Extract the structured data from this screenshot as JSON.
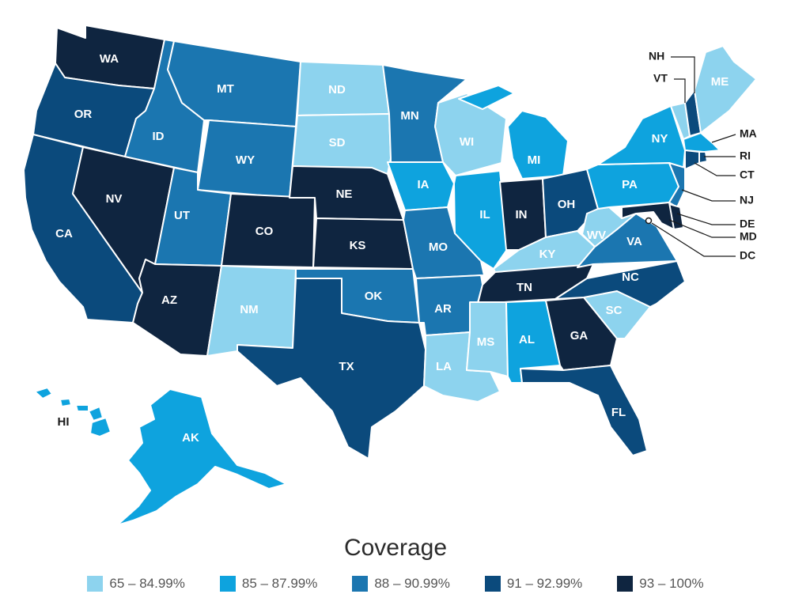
{
  "legend": {
    "title": "Coverage",
    "bins": [
      {
        "label": "65 – 84.99%",
        "color": "#8dd3ee"
      },
      {
        "label": "85 – 87.99%",
        "color": "#0ea3de"
      },
      {
        "label": "88 – 90.99%",
        "color": "#1b76b0"
      },
      {
        "label": "91 – 92.99%",
        "color": "#0b4a7c"
      },
      {
        "label": "93 – 100%",
        "color": "#0f2540"
      }
    ]
  },
  "states": {
    "WA": {
      "abbr": "WA",
      "bin": 4
    },
    "OR": {
      "abbr": "OR",
      "bin": 3
    },
    "CA": {
      "abbr": "CA",
      "bin": 3
    },
    "NV": {
      "abbr": "NV",
      "bin": 4
    },
    "ID": {
      "abbr": "ID",
      "bin": 2
    },
    "MT": {
      "abbr": "MT",
      "bin": 2
    },
    "WY": {
      "abbr": "WY",
      "bin": 2
    },
    "UT": {
      "abbr": "UT",
      "bin": 2
    },
    "AZ": {
      "abbr": "AZ",
      "bin": 4
    },
    "CO": {
      "abbr": "CO",
      "bin": 4
    },
    "NM": {
      "abbr": "NM",
      "bin": 0
    },
    "ND": {
      "abbr": "ND",
      "bin": 0
    },
    "SD": {
      "abbr": "SD",
      "bin": 0
    },
    "NE": {
      "abbr": "NE",
      "bin": 4
    },
    "KS": {
      "abbr": "KS",
      "bin": 4
    },
    "OK": {
      "abbr": "OK",
      "bin": 2
    },
    "TX": {
      "abbr": "TX",
      "bin": 3
    },
    "MN": {
      "abbr": "MN",
      "bin": 2
    },
    "IA": {
      "abbr": "IA",
      "bin": 1
    },
    "MO": {
      "abbr": "MO",
      "bin": 2
    },
    "AR": {
      "abbr": "AR",
      "bin": 2
    },
    "LA": {
      "abbr": "LA",
      "bin": 0
    },
    "WI": {
      "abbr": "WI",
      "bin": 0
    },
    "IL": {
      "abbr": "IL",
      "bin": 1
    },
    "MI": {
      "abbr": "MI",
      "bin": 1
    },
    "IN": {
      "abbr": "IN",
      "bin": 4
    },
    "OH": {
      "abbr": "OH",
      "bin": 3
    },
    "KY": {
      "abbr": "KY",
      "bin": 0
    },
    "TN": {
      "abbr": "TN",
      "bin": 4
    },
    "MS": {
      "abbr": "MS",
      "bin": 0
    },
    "AL": {
      "abbr": "AL",
      "bin": 1
    },
    "GA": {
      "abbr": "GA",
      "bin": 4
    },
    "FL": {
      "abbr": "FL",
      "bin": 3
    },
    "SC": {
      "abbr": "SC",
      "bin": 0
    },
    "NC": {
      "abbr": "NC",
      "bin": 3
    },
    "VA": {
      "abbr": "VA",
      "bin": 2
    },
    "WV": {
      "abbr": "WV",
      "bin": 0
    },
    "PA": {
      "abbr": "PA",
      "bin": 1
    },
    "NY": {
      "abbr": "NY",
      "bin": 1
    },
    "VT": {
      "abbr": "VT",
      "bin": 0
    },
    "NH": {
      "abbr": "NH",
      "bin": 3
    },
    "ME": {
      "abbr": "ME",
      "bin": 0
    },
    "MA": {
      "abbr": "MA",
      "bin": 1
    },
    "RI": {
      "abbr": "RI",
      "bin": 3
    },
    "CT": {
      "abbr": "CT",
      "bin": 3
    },
    "NJ": {
      "abbr": "NJ",
      "bin": 2
    },
    "DE": {
      "abbr": "DE",
      "bin": 4
    },
    "MD": {
      "abbr": "MD",
      "bin": 4
    },
    "DC": {
      "abbr": "DC",
      "bin": 0
    },
    "AK": {
      "abbr": "AK",
      "bin": 1
    },
    "HI": {
      "abbr": "HI",
      "bin": 1
    }
  }
}
